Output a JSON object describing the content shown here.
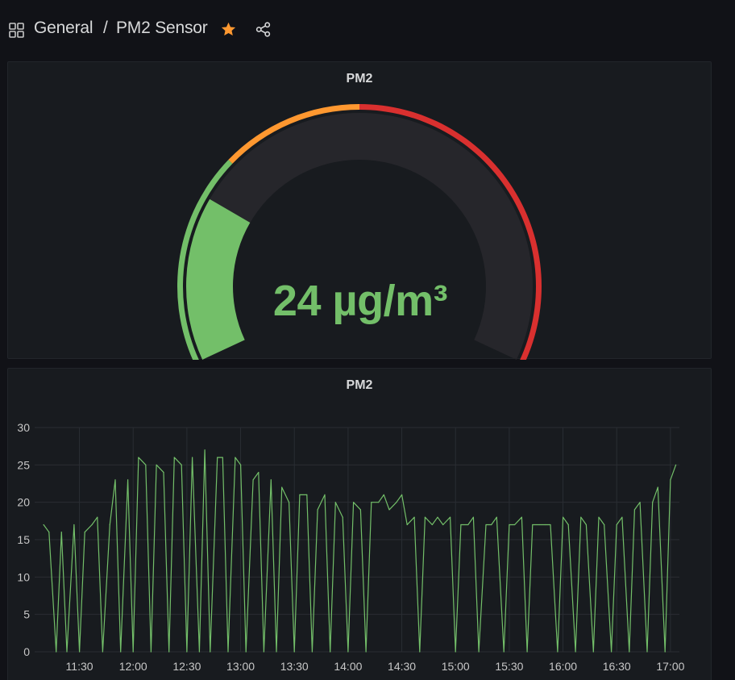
{
  "breadcrumb": {
    "folder": "General",
    "separator": "/",
    "title": "PM2 Sensor"
  },
  "icons": {
    "dashboard": "dashboard-grid-icon",
    "star": "star-icon",
    "share": "share-icon"
  },
  "colors": {
    "background": "#111217",
    "panel": "#181b1f",
    "green": "#73bf69",
    "orange": "#ff9830",
    "red": "#d9302f",
    "star": "#ff9830"
  },
  "gauge_panel": {
    "title": "PM2",
    "value": 24,
    "unit": "µg/m³",
    "display": "24 µg/m³",
    "min": 0,
    "max": 100,
    "thresholds": [
      {
        "from": 0,
        "to": 30,
        "color": "#73bf69"
      },
      {
        "from": 30,
        "to": 50,
        "color": "#ff9830"
      },
      {
        "from": 50,
        "to": 100,
        "color": "#d9302f"
      }
    ]
  },
  "graph_panel": {
    "title": "PM2"
  },
  "chart_data": {
    "type": "line",
    "title": "PM2",
    "xlabel": "",
    "ylabel": "",
    "ylim": [
      0,
      30
    ],
    "y_ticks": [
      "0",
      "5",
      "10",
      "15",
      "20",
      "25",
      "30"
    ],
    "x_ticks": [
      "11:30",
      "12:00",
      "12:30",
      "13:00",
      "13:30",
      "14:00",
      "14:30",
      "15:00",
      "15:30",
      "16:00",
      "16:30",
      "17:00"
    ],
    "grid": true,
    "series": [
      {
        "color": "#73bf69",
        "x": [
          "11:10",
          "11:13",
          "11:17",
          "11:20",
          "11:23",
          "11:27",
          "11:30",
          "11:33",
          "11:37",
          "11:40",
          "11:43",
          "11:47",
          "11:50",
          "11:53",
          "11:57",
          "12:00",
          "12:03",
          "12:07",
          "12:10",
          "12:13",
          "12:17",
          "12:20",
          "12:23",
          "12:27",
          "12:30",
          "12:33",
          "12:37",
          "12:40",
          "12:43",
          "12:47",
          "12:50",
          "12:53",
          "12:57",
          "13:00",
          "13:03",
          "13:07",
          "13:10",
          "13:13",
          "13:17",
          "13:20",
          "13:23",
          "13:27",
          "13:30",
          "13:33",
          "13:37",
          "13:40",
          "13:43",
          "13:47",
          "13:50",
          "13:53",
          "13:57",
          "14:00",
          "14:03",
          "14:07",
          "14:10",
          "14:13",
          "14:17",
          "14:20",
          "14:23",
          "14:27",
          "14:30",
          "14:33",
          "14:37",
          "14:40",
          "14:43",
          "14:47",
          "14:50",
          "14:53",
          "14:57",
          "15:00",
          "15:03",
          "15:07",
          "15:10",
          "15:13",
          "15:17",
          "15:20",
          "15:23",
          "15:27",
          "15:30",
          "15:33",
          "15:37",
          "15:40",
          "15:43",
          "15:47",
          "15:50",
          "15:53",
          "15:57",
          "16:00",
          "16:03",
          "16:07",
          "16:10",
          "16:13",
          "16:17",
          "16:20",
          "16:23",
          "16:27",
          "16:30",
          "16:33",
          "16:37",
          "16:40",
          "16:43",
          "16:47",
          "16:50",
          "16:53",
          "16:57",
          "17:00",
          "17:03"
        ],
        "y": [
          17,
          16,
          0,
          16,
          0,
          17,
          0,
          16,
          17,
          18,
          0,
          17,
          23,
          0,
          23,
          0,
          26,
          25,
          0,
          25,
          24,
          0,
          26,
          25,
          0,
          26,
          0,
          27,
          0,
          26,
          26,
          0,
          26,
          25,
          0,
          23,
          24,
          0,
          23,
          0,
          22,
          20,
          0,
          21,
          21,
          0,
          19,
          21,
          0,
          20,
          18,
          0,
          20,
          19,
          0,
          20,
          20,
          21,
          19,
          20,
          21,
          17,
          18,
          0,
          18,
          17,
          18,
          17,
          18,
          0,
          17,
          17,
          18,
          0,
          17,
          17,
          18,
          0,
          17,
          17,
          18,
          0,
          17,
          17,
          17,
          17,
          0,
          18,
          17,
          0,
          18,
          17,
          0,
          18,
          17,
          0,
          17,
          18,
          0,
          19,
          20,
          0,
          20,
          22,
          0,
          23,
          25
        ]
      }
    ]
  }
}
